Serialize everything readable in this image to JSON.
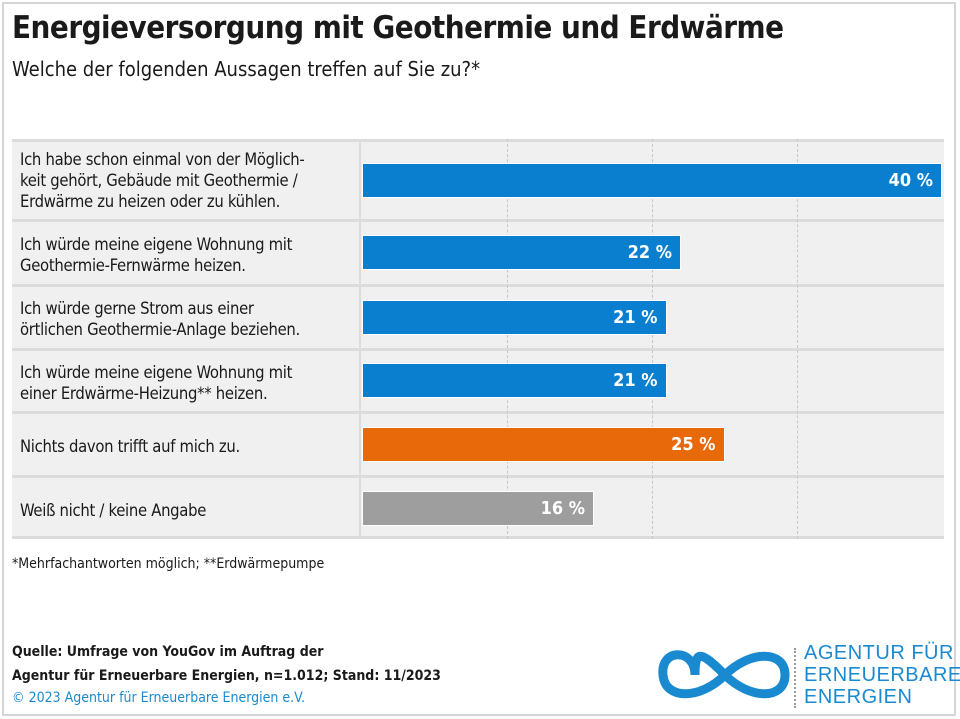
{
  "header": {
    "title": "Energieversorgung mit Geothermie und Erdwärme",
    "subtitle": "Welche der folgenden Aussagen treffen auf Sie zu?*"
  },
  "chart_data": {
    "type": "bar",
    "orientation": "horizontal",
    "categories": [
      [
        "Ich habe schon einmal von der Möglich-",
        "keit gehört, Gebäude mit Geothermie /",
        "Erdwärme zu heizen oder zu kühlen."
      ],
      [
        "Ich würde meine eigene Wohnung mit",
        "Geothermie-Fernwärme heizen."
      ],
      [
        "Ich würde gerne Strom aus einer",
        "örtlichen Geothermie-Anlage beziehen."
      ],
      [
        "Ich würde meine eigene Wohnung mit",
        "einer Erdwärme-Heizung** heizen."
      ],
      [
        "Nichts davon trifft auf mich zu."
      ],
      [
        "Weiß nicht / keine Angabe"
      ]
    ],
    "values": [
      40,
      22,
      21,
      21,
      25,
      16
    ],
    "value_labels": [
      "40 %",
      "22 %",
      "21 %",
      "21 %",
      "25 %",
      "16 %"
    ],
    "colors": [
      "#0a7fcf",
      "#0a7fcf",
      "#0a7fcf",
      "#0a7fcf",
      "#e8690a",
      "#9e9e9e"
    ],
    "xlim": [
      0,
      40
    ],
    "grid_step": 10,
    "grid": true
  },
  "footnote": "*Mehrfachantworten möglich; **Erdwärmepumpe",
  "source": [
    "Quelle: Umfrage von YouGov im Auftrag der",
    "Agentur für Erneuerbare Energien, n=1.012; Stand: 11/2023"
  ],
  "copyright": "© 2023 Agentur für Erneuerbare Energien e.V.",
  "logo": {
    "lines": [
      "AGENTUR FÜR",
      "ERNEUERBARE",
      "ENERGIEN"
    ],
    "color": "#1a8ad0"
  }
}
